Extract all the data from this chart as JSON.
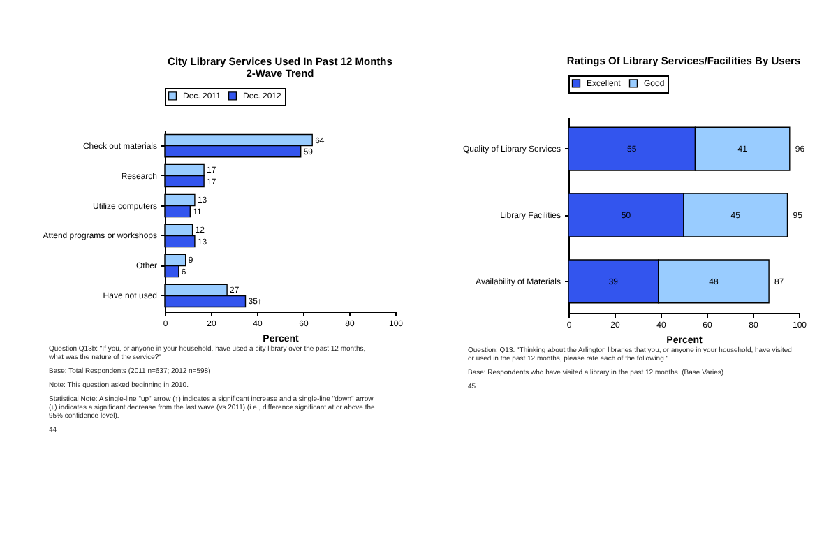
{
  "chart_data": [
    {
      "type": "bar",
      "orientation": "horizontal",
      "title": "City Library Services Used In Past 12 Months",
      "subtitle": "2-Wave Trend",
      "xlabel": "Percent",
      "categories": [
        "Check out materials",
        "Research",
        "Utilize computers",
        "Attend programs or workshops",
        "Other",
        "Have not used"
      ],
      "series": [
        {
          "name": "Dec. 2011",
          "color": "#99ccff",
          "values": [
            64,
            17,
            13,
            12,
            9,
            27
          ],
          "value_labels": [
            "64",
            "17",
            "13",
            "12",
            "9",
            "27"
          ]
        },
        {
          "name": "Dec. 2012",
          "color": "#3355ee",
          "values": [
            59,
            17,
            11,
            13,
            6,
            35
          ],
          "value_labels": [
            "59",
            "17",
            "11",
            "13",
            "6",
            "35↑"
          ]
        }
      ],
      "xlim": [
        0,
        100
      ],
      "xticks": [
        0,
        20,
        40,
        60,
        80,
        100
      ],
      "legend": "top",
      "annotations": [
        "Question Q13b: \"If you, or anyone in your household, have used a city library over the past 12 months, what was the nature of the service?\"",
        "Base: Total Respondents (2011 n=637; 2012 n=598)",
        "Note: This question asked beginning in 2010.",
        "Statistical Note: A single-line \"up\" arrow (↑) indicates a significant increase and a single-line \"down\" arrow (↓) indicates a significant decrease from the last wave (vs 2011) (i.e., difference significant at or above the 95% confidence level).",
        "44"
      ]
    },
    {
      "type": "bar",
      "orientation": "horizontal",
      "stacked": true,
      "data_labels": true,
      "title": "Ratings Of Library Services/Facilities By Users",
      "xlabel": "Percent",
      "categories": [
        "Quality of Library Services",
        "Library Facilities",
        "Availability of Materials"
      ],
      "series": [
        {
          "name": "Excellent",
          "color": "#3355ee",
          "values": [
            55,
            50,
            39
          ]
        },
        {
          "name": "Good",
          "color": "#99ccff",
          "values": [
            41,
            45,
            48
          ]
        }
      ],
      "totals": [
        "96",
        "95",
        "87"
      ],
      "xlim": [
        0,
        100
      ],
      "xticks": [
        0,
        20,
        40,
        60,
        80,
        100
      ],
      "legend": "top",
      "annotations": [
        "Question: Q13. \"Thinking about the Arlington libraries that you, or anyone in your household, have visited or used in the past 12 months, please rate each of the following.\"",
        "Base: Respondents who have visited a library in the past 12 months. (Base Varies)",
        "45"
      ]
    }
  ]
}
